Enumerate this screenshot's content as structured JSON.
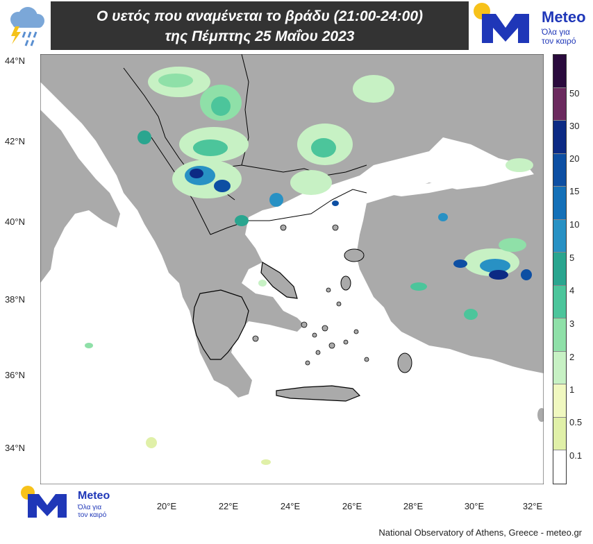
{
  "header": {
    "title_line1": "Ο υετός που αναμένεται το βράδυ (21:00-24:00)",
    "title_line2": "της Πέμπτης 25 Μαΐου 2023"
  },
  "logo": {
    "name": "Meteo",
    "tagline_1": "Όλα για",
    "tagline_2": "τον καιρό",
    "brand_color": "#1f37b8",
    "sun_color": "#f7c21a"
  },
  "icons": {
    "weather": "thunderstorm-rain-icon"
  },
  "map": {
    "lat_labels": [
      "44°N",
      "42°N",
      "40°N",
      "38°N",
      "36°N",
      "34°N"
    ],
    "lon_labels": [
      "20°E",
      "22°E",
      "24°E",
      "26°E",
      "28°E",
      "30°E",
      "32°E"
    ],
    "land_color": "#aaaaaa",
    "sea_color": "#ffffff"
  },
  "colorbar": {
    "labels": [
      "50",
      "30",
      "20",
      "15",
      "10",
      "5",
      "4",
      "3",
      "2",
      "1",
      "0.5",
      "0.1"
    ],
    "colors": [
      "#2a0a3d",
      "#6b2a5e",
      "#0c2a84",
      "#0d4fa3",
      "#1470b8",
      "#2891c4",
      "#2aa58f",
      "#4cc59b",
      "#8fe0a8",
      "#c7f1c4",
      "#f0f8c0",
      "#e0f0a8",
      "#ffffff"
    ]
  },
  "credit": "National Observatory of Athens, Greece - meteo.gr"
}
